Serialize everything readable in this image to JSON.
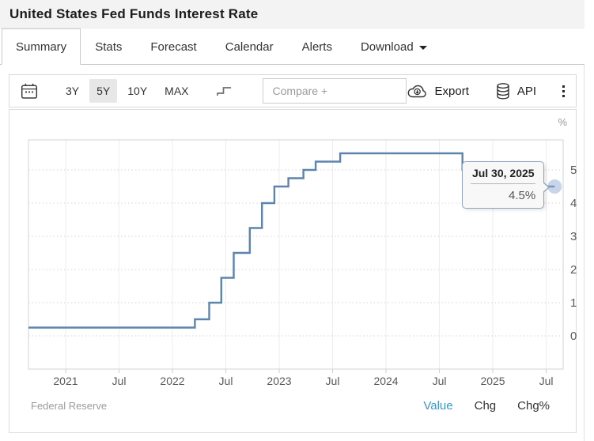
{
  "header": {
    "title": "United States Fed Funds Interest Rate"
  },
  "tabs": [
    {
      "label": "Summary",
      "active": true
    },
    {
      "label": "Stats",
      "active": false
    },
    {
      "label": "Forecast",
      "active": false
    },
    {
      "label": "Calendar",
      "active": false
    },
    {
      "label": "Alerts",
      "active": false
    },
    {
      "label": "Download",
      "active": false,
      "caret": true
    }
  ],
  "toolbar": {
    "calendar_icon": "calendar-icon",
    "ranges": [
      "3Y",
      "5Y",
      "10Y",
      "MAX"
    ],
    "active_range": "5Y",
    "step_chart_icon": "step-line-icon",
    "compare_placeholder": "Compare +",
    "export_label": "Export",
    "api_label": "API",
    "menu_icon": "kebab-menu-icon"
  },
  "chart_data": {
    "type": "line",
    "subtype": "step-after",
    "title": "United States Fed Funds Interest Rate",
    "unit_label": "%",
    "grid": true,
    "legend_position": "none",
    "xlim": [
      2020.652,
      2025.659
    ],
    "ylim": [
      -1.0,
      5.905
    ],
    "series": [
      {
        "name": "Fed Funds Interest Rate",
        "color": "#5b84ae",
        "points": [
          [
            "2020-07-30",
            0.25
          ],
          [
            "2022-03-17",
            0.5
          ],
          [
            "2022-05-05",
            1.0
          ],
          [
            "2022-06-16",
            1.75
          ],
          [
            "2022-07-28",
            2.5
          ],
          [
            "2022-09-22",
            3.25
          ],
          [
            "2022-11-03",
            4.0
          ],
          [
            "2022-12-15",
            4.5
          ],
          [
            "2023-02-02",
            4.75
          ],
          [
            "2023-03-23",
            5.0
          ],
          [
            "2023-05-04",
            5.25
          ],
          [
            "2023-07-27",
            5.5
          ],
          [
            "2024-09-19",
            5.0
          ],
          [
            "2024-11-08",
            4.75
          ],
          [
            "2024-12-19",
            4.5
          ],
          [
            "2025-07-30",
            4.5
          ]
        ]
      }
    ],
    "x_ticks": [
      {
        "date": "2021-01-01",
        "label": "2021"
      },
      {
        "date": "2021-07-01",
        "label": "Jul"
      },
      {
        "date": "2022-01-01",
        "label": "2022"
      },
      {
        "date": "2022-07-01",
        "label": "Jul"
      },
      {
        "date": "2023-01-01",
        "label": "2023"
      },
      {
        "date": "2023-07-01",
        "label": "Jul"
      },
      {
        "date": "2024-01-01",
        "label": "2024"
      },
      {
        "date": "2024-07-01",
        "label": "Jul"
      },
      {
        "date": "2025-01-01",
        "label": "2025"
      },
      {
        "date": "2025-07-01",
        "label": "Jul"
      }
    ],
    "y_ticks": [
      0,
      1,
      2,
      3,
      4,
      5
    ],
    "tooltip": {
      "date": "Jul 30, 2025",
      "value": "4.5%"
    }
  },
  "footer": {
    "source": "Federal Reserve",
    "links": [
      {
        "label": "Value",
        "active": true
      },
      {
        "label": "Chg",
        "active": false
      },
      {
        "label": "Chg%",
        "active": false
      }
    ]
  },
  "colors": {
    "accent_link": "#3a96d2",
    "line": "#5b84ae",
    "marker_fill": "rgba(145,170,210,0.5)",
    "grid_h": "#d5d5d5",
    "grid_v": "#ededed",
    "plot_border": "#d3d3d3",
    "axis_text": "#5a5a5a",
    "active_range_bg": "#e7e7e7"
  }
}
